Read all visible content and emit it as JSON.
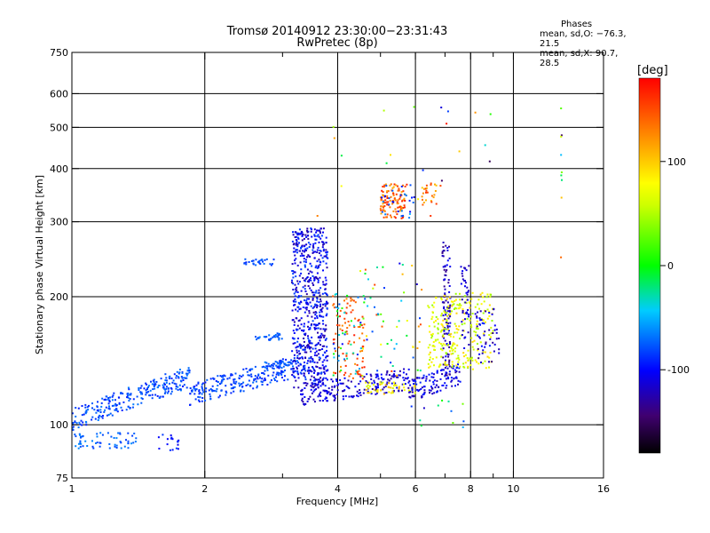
{
  "header": {
    "title_line1": "Tromsø 20140912 23:30:00−23:31:43",
    "title_line2": "RwPretec (8p)"
  },
  "phases": {
    "heading": "Phases",
    "line_o": "mean, sd,O: −76.3, 21.5",
    "line_x": "mean, sd,X:  90.7, 28.5"
  },
  "chart_data": {
    "type": "scatter",
    "xlabel": "Frequency [MHz]",
    "ylabel": "Stationary phase Virtual Height [km]",
    "xscale": "log",
    "yscale": "log",
    "xlim": [
      1,
      16
    ],
    "ylim": [
      75,
      750
    ],
    "xticks": [
      1,
      2,
      4,
      6,
      8,
      10,
      16
    ],
    "xtick_labels": [
      "1",
      "2",
      "4",
      "6",
      "8",
      "10",
      "16"
    ],
    "x_minor_ticks": [
      3,
      5,
      7,
      9
    ],
    "yticks": [
      75,
      100,
      200,
      300,
      400,
      500,
      600,
      750
    ],
    "ytick_labels": [
      "75",
      "100",
      "200",
      "300",
      "400",
      "500",
      "600",
      "750"
    ],
    "grid": true,
    "colorbar": {
      "label": "[deg]",
      "range": [
        -180,
        180
      ],
      "ticks": [
        100,
        0,
        -100
      ],
      "tick_labels": [
        "100",
        "0",
        "-100"
      ]
    },
    "clusters": [
      {
        "name": "lower-trace-a",
        "x": [
          1.0,
          1.85
        ],
        "y": [
          103,
          130
        ],
        "phase": [
          -95,
          -65
        ],
        "n": 260,
        "mode": "band"
      },
      {
        "name": "lower-trace-b",
        "x": [
          1.85,
          3.3
        ],
        "y": [
          118,
          138
        ],
        "phase": [
          -95,
          -70
        ],
        "n": 240,
        "mode": "band"
      },
      {
        "name": "bottom-patch",
        "x": [
          1.0,
          1.4
        ],
        "y": [
          88,
          96
        ],
        "phase": [
          -85,
          -60
        ],
        "n": 60,
        "mode": "uniform"
      },
      {
        "name": "bottom-patch-2",
        "x": [
          1.55,
          1.75
        ],
        "y": [
          87,
          95
        ],
        "phase": [
          -110,
          -80
        ],
        "n": 18,
        "mode": "uniform"
      },
      {
        "name": "patch-240",
        "x": [
          2.45,
          2.9
        ],
        "y": [
          237,
          245
        ],
        "phase": [
          -90,
          -70
        ],
        "n": 30,
        "mode": "uniform"
      },
      {
        "name": "patch-160",
        "x": [
          2.6,
          3.0
        ],
        "y": [
          158,
          164
        ],
        "phase": [
          -85,
          -65
        ],
        "n": 30,
        "mode": "uniform"
      },
      {
        "name": "patch-138",
        "x": [
          2.7,
          3.2
        ],
        "y": [
          136,
          141
        ],
        "phase": [
          -85,
          -65
        ],
        "n": 30,
        "mode": "uniform"
      },
      {
        "name": "column-3p5",
        "x": [
          3.15,
          3.8
        ],
        "y": [
          122,
          290
        ],
        "phase": [
          -130,
          -80
        ],
        "n": 620,
        "mode": "uniform"
      },
      {
        "name": "base-trace",
        "x": [
          3.3,
          5.8
        ],
        "y": [
          118,
          128
        ],
        "phase": [
          -130,
          -95
        ],
        "n": 200,
        "mode": "band"
      },
      {
        "name": "orange-col-4",
        "x": [
          3.9,
          4.6
        ],
        "y": [
          128,
          205
        ],
        "phase": [
          120,
          170
        ],
        "n": 90,
        "mode": "uniform"
      },
      {
        "name": "mixed-col-4",
        "x": [
          3.9,
          4.6
        ],
        "y": [
          128,
          205
        ],
        "phase": [
          -100,
          20
        ],
        "n": 40,
        "mode": "uniform"
      },
      {
        "name": "orange-350",
        "x": [
          5.0,
          5.7
        ],
        "y": [
          305,
          370
        ],
        "phase": [
          110,
          170
        ],
        "n": 110,
        "mode": "uniform"
      },
      {
        "name": "orange-350-blue",
        "x": [
          5.0,
          6.0
        ],
        "y": [
          305,
          370
        ],
        "phase": [
          -110,
          -60
        ],
        "n": 25,
        "mode": "uniform"
      },
      {
        "name": "orange-330-b",
        "x": [
          6.2,
          6.7
        ],
        "y": [
          325,
          375
        ],
        "phase": [
          100,
          160
        ],
        "n": 25,
        "mode": "uniform"
      },
      {
        "name": "mid-scatter",
        "x": [
          4.5,
          6.2
        ],
        "y": [
          130,
          240
        ],
        "phase": [
          -120,
          160
        ],
        "n": 60,
        "mode": "uniform"
      },
      {
        "name": "yellow-band",
        "x": [
          4.6,
          6.0
        ],
        "y": [
          118,
          126
        ],
        "phase": [
          60,
          110
        ],
        "n": 50,
        "mode": "uniform"
      },
      {
        "name": "base-trace-2",
        "x": [
          5.8,
          7.6
        ],
        "y": [
          120,
          132
        ],
        "phase": [
          -130,
          -90
        ],
        "n": 120,
        "mode": "band"
      },
      {
        "name": "spike-7",
        "x": [
          6.9,
          7.2
        ],
        "y": [
          130,
          270
        ],
        "phase": [
          -140,
          -100
        ],
        "n": 110,
        "mode": "uniform"
      },
      {
        "name": "green-cluster",
        "x": [
          6.4,
          9.0
        ],
        "y": [
          135,
          205
        ],
        "phase": [
          40,
          100
        ],
        "n": 260,
        "mode": "uniform"
      },
      {
        "name": "blue-edge-8",
        "x": [
          8.2,
          9.3
        ],
        "y": [
          140,
          190
        ],
        "phase": [
          -140,
          -90
        ],
        "n": 50,
        "mode": "uniform"
      },
      {
        "name": "spike-8",
        "x": [
          7.6,
          8.0
        ],
        "y": [
          150,
          240
        ],
        "phase": [
          -130,
          -100
        ],
        "n": 40,
        "mode": "uniform"
      },
      {
        "name": "column-13",
        "x": [
          12.8,
          12.9
        ],
        "y": [
          245,
          575
        ],
        "phase": [
          -160,
          160
        ],
        "n": 9,
        "mode": "uniform"
      },
      {
        "name": "sparse-high",
        "x": [
          3.5,
          9.0
        ],
        "y": [
          300,
          560
        ],
        "phase": [
          -160,
          170
        ],
        "n": 25,
        "mode": "uniform"
      },
      {
        "name": "sparse-low",
        "x": [
          5.5,
          9.0
        ],
        "y": [
          98,
          115
        ],
        "phase": [
          -120,
          40
        ],
        "n": 12,
        "mode": "uniform"
      }
    ]
  }
}
